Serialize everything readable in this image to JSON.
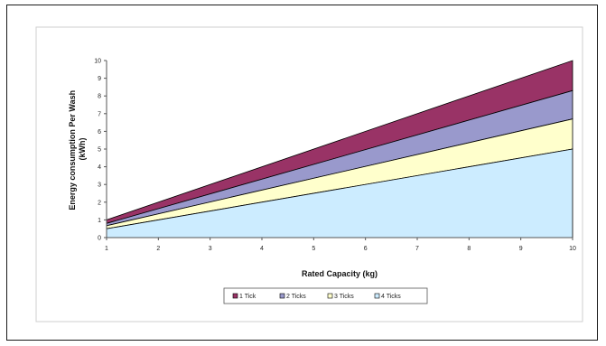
{
  "chart_data": {
    "type": "area",
    "stacked": true,
    "title": "",
    "xlabel": "Rated Capacity (kg)",
    "ylabel": "Energy consumption Per Wash (kWh)",
    "ylabel_lines": [
      "Energy consumption Per Wash",
      "(kWh)"
    ],
    "x": [
      1,
      10
    ],
    "xticks": [
      1,
      2,
      3,
      4,
      5,
      6,
      7,
      8,
      9,
      10
    ],
    "yticks": [
      0,
      1,
      2,
      3,
      4,
      5,
      6,
      7,
      8,
      9,
      10
    ],
    "xlim": [
      1,
      10
    ],
    "ylim": [
      0,
      10
    ],
    "grid": false,
    "legend_position": "bottom",
    "series": [
      {
        "name": "1 Tick",
        "upper": [
          1.0,
          10.0
        ],
        "color": "#993366"
      },
      {
        "name": "2 Ticks",
        "upper": [
          0.8,
          8.3
        ],
        "color": "#9999cc"
      },
      {
        "name": "3 Ticks",
        "upper": [
          0.67,
          6.7
        ],
        "color": "#ffffcc"
      },
      {
        "name": "4 Ticks",
        "upper": [
          0.5,
          5.0
        ],
        "color": "#ccecff"
      }
    ]
  }
}
